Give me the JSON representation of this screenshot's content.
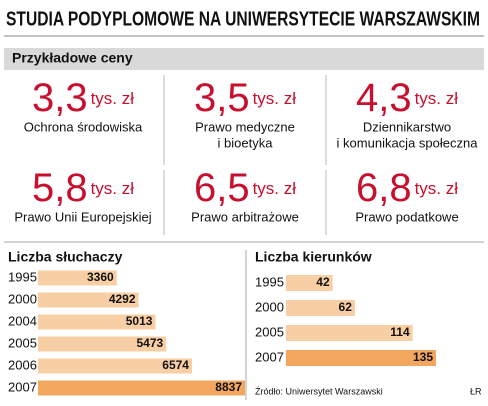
{
  "title": "STUDIA PODYPLOMOWE NA UNIWERSYTECIE WARSZAWSKIM",
  "subtitle": "Przykładowe ceny",
  "prices": [
    {
      "value": "3,3",
      "unit": "tys. zł",
      "lines": [
        "Ochrona środowiska"
      ]
    },
    {
      "value": "3,5",
      "unit": "tys. zł",
      "lines": [
        "Prawo medyczne",
        "i bioetyka"
      ]
    },
    {
      "value": "4,3",
      "unit": "tys. zł",
      "lines": [
        "Dziennikarstwo",
        "i komunikacja społeczna"
      ]
    },
    {
      "value": "5,8",
      "unit": "tys. zł",
      "lines": [
        "Prawo Unii Europejskiej"
      ]
    },
    {
      "value": "6,5",
      "unit": "tys. zł",
      "lines": [
        "Prawo arbitrażowe"
      ]
    },
    {
      "value": "6,8",
      "unit": "tys. zł",
      "lines": [
        "Prawo podatkowe"
      ]
    }
  ],
  "chart_data": [
    {
      "type": "hbar",
      "title": "Liczba słuchaczy",
      "categories": [
        "1995",
        "2000",
        "2004",
        "2005",
        "2006",
        "2007"
      ],
      "values": [
        3360,
        4292,
        5013,
        5473,
        6574,
        8837
      ],
      "colors": [
        "#f8cfa4",
        "#f8cfa4",
        "#f8cfa4",
        "#f8cfa4",
        "#f8cfa4",
        "#f2a65e"
      ]
    },
    {
      "type": "hbar",
      "title": "Liczba kierunków",
      "categories": [
        "1995",
        "2000",
        "2005",
        "2007"
      ],
      "values": [
        42,
        62,
        114,
        135
      ],
      "colors": [
        "#f8cfa4",
        "#f8cfa4",
        "#f8cfa4",
        "#f2a65e"
      ]
    }
  ],
  "source": "Źródło: Uniwersytet Warszawski",
  "credit": "ŁR"
}
